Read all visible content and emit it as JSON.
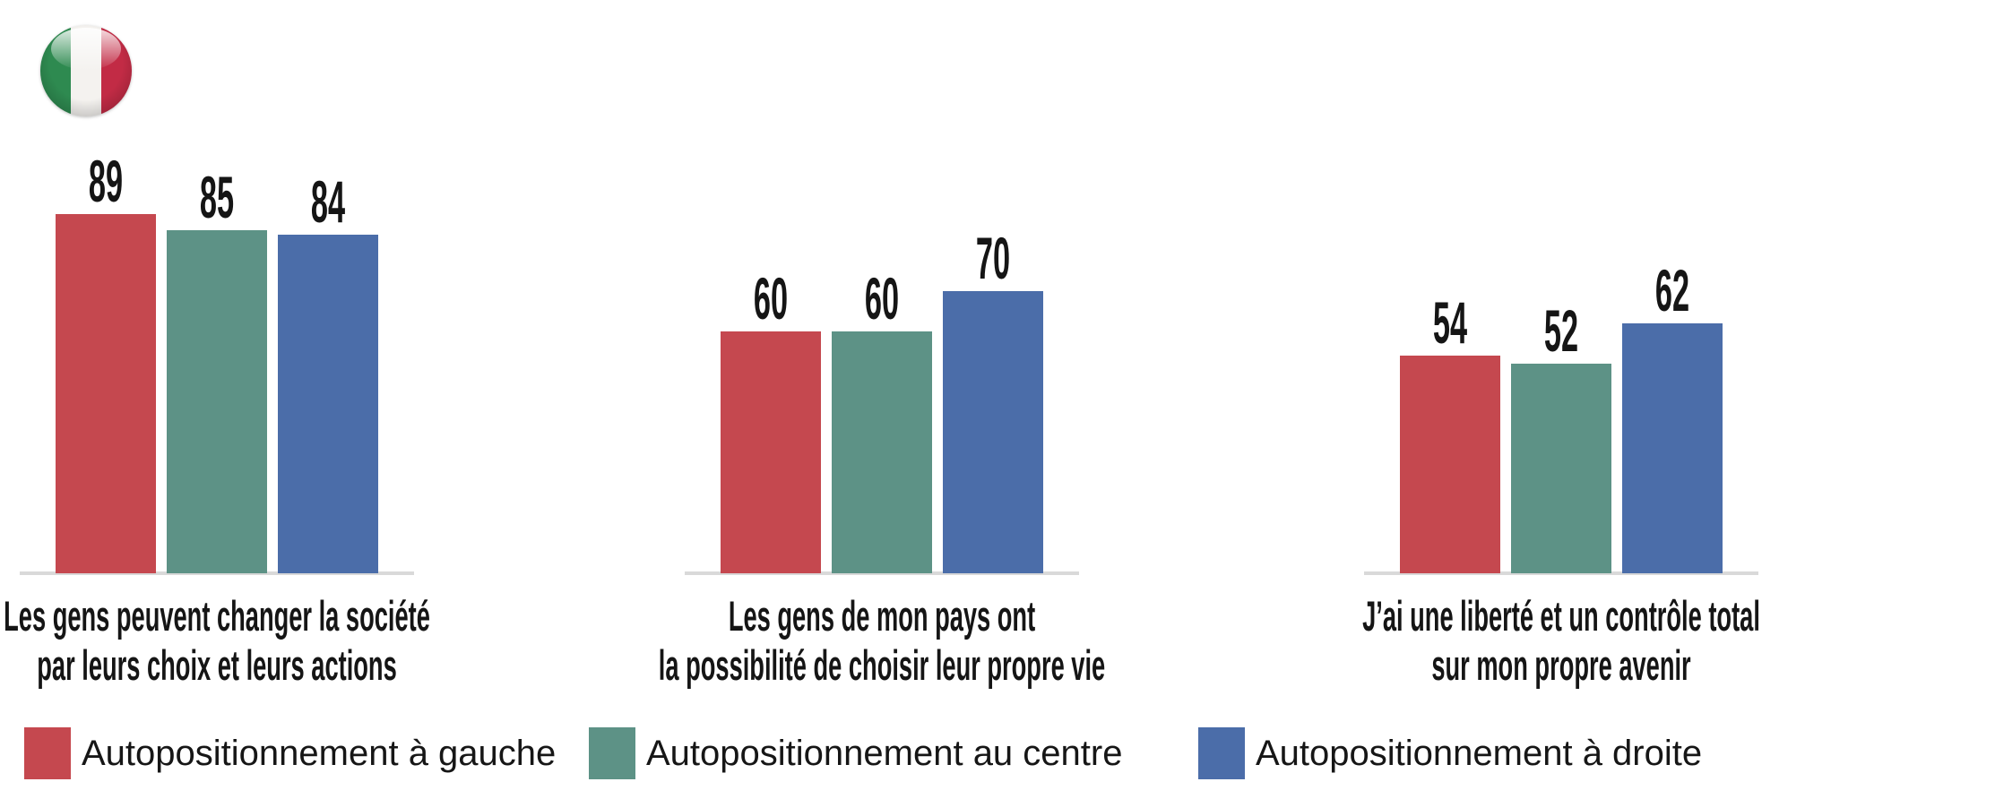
{
  "flag": {
    "country": "Italy",
    "colors": {
      "green": "#2e8a50",
      "white": "#f4f2ef",
      "red": "#c22b45"
    }
  },
  "chart_data": {
    "type": "bar",
    "title": "",
    "xlabel": "",
    "ylabel": "",
    "ylim": [
      0,
      100
    ],
    "grid": false,
    "value_labels": true,
    "legend_position": "bottom",
    "axis_line_color": "#d9d9d9",
    "categories": [
      "Les gens peuvent changer la société par leurs choix et leurs actions",
      "Les gens de mon pays ont la possibilité de choisir leur propre vie",
      "J’ai une liberté et un contrôle total sur mon propre avenir"
    ],
    "groups": [
      {
        "caption_lines": [
          "Les gens peuvent changer la société",
          "par leurs choix et leurs actions"
        ],
        "values": [
          89,
          85,
          84
        ]
      },
      {
        "caption_lines": [
          "Les gens de mon pays ont",
          "la possibilité de choisir leur propre vie"
        ],
        "values": [
          60,
          60,
          70
        ]
      },
      {
        "caption_lines": [
          "J’ai une liberté et un contrôle total",
          "sur mon propre avenir"
        ],
        "values": [
          54,
          52,
          62
        ]
      }
    ],
    "series": [
      {
        "key": "gauche",
        "name": "Autopositionnement à gauche",
        "color": "#c5484f",
        "values": [
          89,
          60,
          54
        ]
      },
      {
        "key": "centre",
        "name": "Autopositionnement au centre",
        "color": "#5d9286",
        "values": [
          85,
          60,
          52
        ]
      },
      {
        "key": "droite",
        "name": "Autopositionnement à droite",
        "color": "#4b6da9",
        "values": [
          84,
          70,
          62
        ]
      }
    ]
  }
}
